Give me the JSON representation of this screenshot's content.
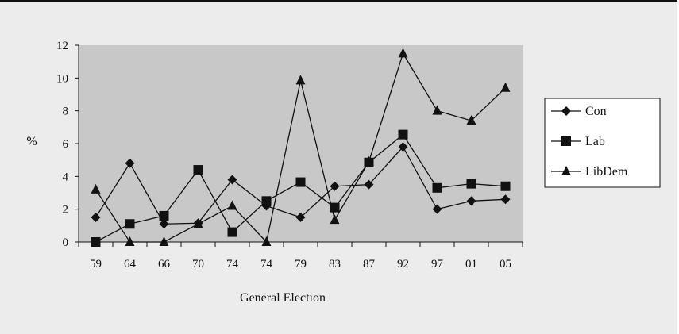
{
  "chart_data": {
    "type": "line",
    "categories": [
      "59",
      "64",
      "66",
      "70",
      "74",
      "74",
      "79",
      "83",
      "87",
      "92",
      "97",
      "01",
      "05"
    ],
    "xlabel": "General Election",
    "ylabel": "%",
    "ylim": [
      0,
      12
    ],
    "yticks": [
      0,
      2,
      4,
      6,
      8,
      10,
      12
    ],
    "grid": false,
    "legend_position": "right",
    "series": [
      {
        "name": "Con",
        "marker": "diamond",
        "values": [
          1.5,
          4.8,
          1.1,
          1.15,
          3.8,
          2.2,
          1.5,
          3.4,
          3.5,
          5.8,
          2.0,
          2.5,
          2.6
        ]
      },
      {
        "name": "Lab",
        "marker": "square",
        "values": [
          0.0,
          1.1,
          1.6,
          4.4,
          0.6,
          2.5,
          3.65,
          2.1,
          4.85,
          6.55,
          3.3,
          3.55,
          3.4
        ]
      },
      {
        "name": "LibDem",
        "marker": "triangle",
        "values": [
          3.2,
          0.0,
          0.0,
          1.1,
          2.2,
          0.0,
          9.85,
          1.35,
          4.9,
          11.5,
          8.0,
          7.4,
          9.4
        ]
      }
    ]
  }
}
